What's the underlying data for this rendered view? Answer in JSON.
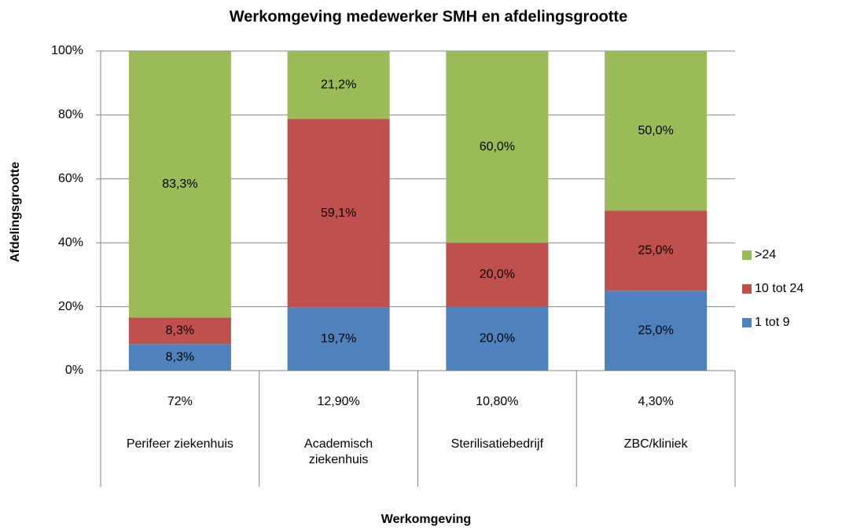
{
  "chart_data": {
    "type": "stacked_bar",
    "title": "Werkomgeving medewerker SMH en afdelingsgrootte",
    "x_label": "Werkomgeving",
    "y_label": "Afdelingsgrootte",
    "categories": [
      "Perifeer ziekenhuis",
      "Academisch ziekenhuis",
      "Sterilisatiebedrijf",
      "ZBC/kliniek"
    ],
    "category_labels": [
      "72%",
      "12,90%",
      "10,80%",
      "4,30%"
    ],
    "series": [
      {
        "name": "1 tot 9",
        "color": "#4f81bd",
        "values": [
          8.3,
          19.7,
          20.0,
          25.0
        ],
        "value_labels": [
          "8,3%",
          "19,7%",
          "20,0%",
          "25,0%"
        ]
      },
      {
        "name": "10 tot 24",
        "color": "#c0504d",
        "values": [
          8.3,
          59.1,
          20.0,
          25.0
        ],
        "value_labels": [
          "8,3%",
          "59,1%",
          "20,0%",
          "25,0%"
        ]
      },
      {
        "name": ">24",
        "color": "#9bbb59",
        "values": [
          83.3,
          21.2,
          60.0,
          50.0
        ],
        "value_labels": [
          "83,3%",
          "21,2%",
          "60,0%",
          "50,0%"
        ]
      }
    ],
    "ylim": [
      0,
      100
    ],
    "yticks": [
      {
        "value": 0,
        "label": "0%"
      },
      {
        "value": 20,
        "label": "20%"
      },
      {
        "value": 40,
        "label": "40%"
      },
      {
        "value": 60,
        "label": "60%"
      },
      {
        "value": 80,
        "label": "80%"
      },
      {
        "value": 100,
        "label": "100%"
      }
    ],
    "grid": true,
    "legend": "right"
  }
}
